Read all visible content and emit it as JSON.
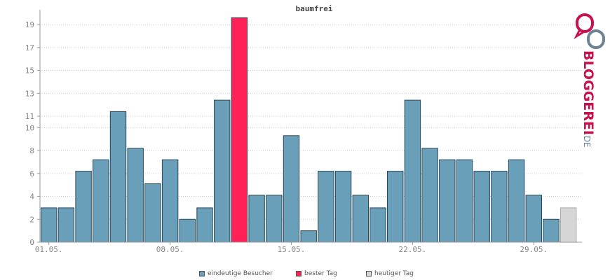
{
  "chart_data": {
    "type": "bar",
    "title": "baumfrei",
    "xlabel": "",
    "ylabel": "",
    "ylim": [
      0,
      19.8
    ],
    "yticks": [
      0,
      2,
      4,
      6,
      8,
      10,
      11,
      13,
      15,
      17,
      19
    ],
    "xtick_labels": [
      {
        "day": 1,
        "label": "01.05."
      },
      {
        "day": 8,
        "label": "08.05."
      },
      {
        "day": 15,
        "label": "15.05."
      },
      {
        "day": 22,
        "label": "22.05."
      },
      {
        "day": 29,
        "label": "29.05."
      }
    ],
    "days": [
      1,
      2,
      3,
      4,
      5,
      6,
      7,
      8,
      9,
      10,
      11,
      12,
      13,
      14,
      15,
      16,
      17,
      18,
      19,
      20,
      21,
      22,
      23,
      24,
      25,
      26,
      27,
      28,
      29,
      30,
      31
    ],
    "values": [
      3,
      3,
      6.2,
      7.2,
      11.4,
      8.2,
      5.1,
      7.2,
      2,
      3,
      12.4,
      19.6,
      4.1,
      4.1,
      9.3,
      1,
      6.2,
      6.2,
      4.1,
      3,
      6.2,
      12.4,
      8.2,
      7.2,
      7.2,
      6.2,
      6.2,
      7.2,
      4.1,
      2,
      3
    ],
    "kinds": [
      "visitors",
      "visitors",
      "visitors",
      "visitors",
      "visitors",
      "visitors",
      "visitors",
      "visitors",
      "visitors",
      "visitors",
      "visitors",
      "best",
      "visitors",
      "visitors",
      "visitors",
      "visitors",
      "visitors",
      "visitors",
      "visitors",
      "visitors",
      "visitors",
      "visitors",
      "visitors",
      "visitors",
      "visitors",
      "visitors",
      "visitors",
      "visitors",
      "visitors",
      "visitors",
      "today"
    ],
    "grid": true,
    "legend_position": "bottom-center",
    "colors": {
      "visitors": "#6a9fba",
      "best": "#ff2056",
      "today": "#d6d6d6",
      "bar_edge": "#2b4a59",
      "axis": "#999999",
      "grid": "#cccccc",
      "text": "#888888"
    }
  },
  "legend": [
    {
      "label": "eindeutige Besucher",
      "color": "#6a9fba"
    },
    {
      "label": "bester Tag",
      "color": "#ff2056"
    },
    {
      "label": "heutiger Tag",
      "color": "#d6d6d6"
    }
  ],
  "logo": {
    "text": "BLOGGEREI",
    "suffix": ".DE",
    "icon": "speech-bubbles-icon",
    "colors": {
      "primary": "#c8124e",
      "secondary": "#6b8397"
    }
  }
}
